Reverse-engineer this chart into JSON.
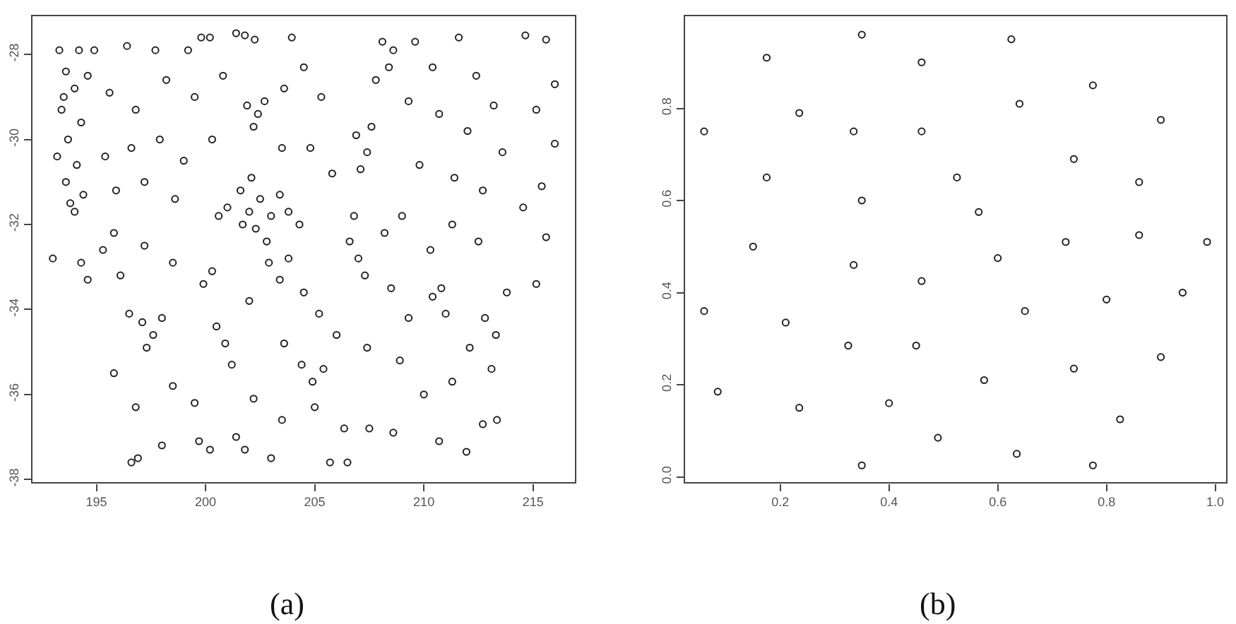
{
  "chart_data": [
    {
      "type": "scatter",
      "marker": "circle",
      "color": "#222222",
      "xlim": [
        192.07,
        216.92
      ],
      "ylim": [
        -38.07,
        -27.1
      ],
      "xticks": [
        195,
        200,
        205,
        210,
        215
      ],
      "yticks": [
        -28,
        -30,
        -32,
        -34,
        -36,
        -38
      ],
      "annotations": [
        "(a)"
      ],
      "x": [
        193.3,
        194.2,
        193.6,
        194.0,
        193.4,
        194.3,
        193.7,
        193.2,
        194.1,
        193.6,
        194.4,
        194.0,
        193.5,
        194.6,
        193.8,
        194.9,
        196.4,
        197.7,
        199.2,
        195.6,
        196.8,
        198.2,
        199.5,
        195.4,
        196.6,
        197.9,
        199.0,
        195.9,
        197.2,
        198.6,
        200.3,
        200.8,
        199.8,
        200.2,
        201.4,
        201.8,
        202.25,
        203.95,
        201.9,
        202.4,
        202.2,
        202.7,
        201.0,
        201.6,
        202.0,
        202.5,
        203.0,
        202.3,
        201.7,
        203.4,
        203.8,
        202.8,
        202.1,
        200.6,
        204.3,
        204.5,
        205.3,
        203.6,
        204.8,
        205.8,
        203.5,
        206.9,
        207.4,
        207.1,
        207.6,
        208.1,
        208.6,
        208.4,
        207.8,
        209.6,
        210.4,
        211.6,
        212.4,
        209.3,
        210.7,
        212.0,
        213.2,
        209.8,
        211.4,
        212.7,
        213.6,
        214.65,
        215.6,
        216.0,
        215.15,
        216.0,
        215.4,
        214.55,
        215.6,
        215.15,
        213.8,
        193.0,
        194.3,
        195.3,
        194.6,
        195.8,
        196.1,
        197.2,
        198.5,
        199.9,
        200.3,
        196.5,
        197.1,
        197.6,
        197.3,
        198.0,
        200.5,
        200.9,
        201.2,
        202.9,
        203.4,
        203.8,
        204.5,
        205.2,
        202.0,
        206.6,
        207.0,
        207.3,
        206.8,
        208.2,
        209.0,
        208.5,
        210.3,
        211.3,
        212.5,
        210.4,
        211.0,
        210.8,
        209.3,
        212.8,
        213.3,
        212.1,
        204.4,
        204.9,
        205.4,
        203.6,
        206.0,
        207.4,
        198.5,
        196.8,
        199.5,
        202.2,
        203.5,
        196.6,
        196.9,
        199.7,
        200.2,
        201.4,
        201.8,
        203.0,
        205.7,
        206.5,
        207.5,
        208.6,
        206.35,
        205.0,
        210.0,
        210.7,
        211.95,
        212.7,
        213.35,
        211.3,
        213.1,
        195.8,
        198.0,
        208.9
      ],
      "values": [
        -27.9,
        -27.9,
        -28.4,
        -28.8,
        -29.3,
        -29.6,
        -30.0,
        -30.4,
        -30.6,
        -31.0,
        -31.3,
        -31.7,
        -29.0,
        -28.5,
        -31.5,
        -27.9,
        -27.8,
        -27.9,
        -27.9,
        -28.9,
        -29.3,
        -28.6,
        -29.0,
        -30.4,
        -30.2,
        -30.0,
        -30.5,
        -31.2,
        -31.0,
        -31.4,
        -30.0,
        -28.5,
        -27.6,
        -27.6,
        -27.5,
        -27.55,
        -27.65,
        -27.6,
        -29.2,
        -29.4,
        -29.7,
        -29.1,
        -31.6,
        -31.2,
        -31.7,
        -31.4,
        -31.8,
        -32.1,
        -32.0,
        -31.3,
        -31.7,
        -32.4,
        -30.9,
        -31.8,
        -32.0,
        -28.3,
        -29.0,
        -28.8,
        -30.2,
        -30.8,
        -30.2,
        -29.9,
        -30.3,
        -30.7,
        -29.7,
        -27.7,
        -27.9,
        -28.3,
        -28.6,
        -27.7,
        -28.3,
        -27.6,
        -28.5,
        -29.1,
        -29.4,
        -29.8,
        -29.2,
        -30.6,
        -30.9,
        -31.2,
        -30.3,
        -27.55,
        -27.65,
        -28.7,
        -29.3,
        -30.1,
        -31.1,
        -31.6,
        -32.3,
        -33.4,
        -33.6,
        -32.8,
        -32.9,
        -32.6,
        -33.3,
        -32.2,
        -33.2,
        -32.5,
        -32.9,
        -33.4,
        -33.1,
        -34.1,
        -34.3,
        -34.6,
        -34.9,
        -34.2,
        -34.4,
        -34.8,
        -35.3,
        -32.9,
        -33.3,
        -32.8,
        -33.6,
        -34.1,
        -33.8,
        -32.4,
        -32.8,
        -33.2,
        -31.8,
        -32.2,
        -31.8,
        -33.5,
        -32.6,
        -32.0,
        -32.4,
        -33.7,
        -34.1,
        -33.5,
        -34.2,
        -34.2,
        -34.6,
        -34.9,
        -35.3,
        -35.7,
        -35.4,
        -34.8,
        -34.6,
        -34.9,
        -35.8,
        -36.3,
        -36.2,
        -36.1,
        -36.6,
        -37.6,
        -37.5,
        -37.1,
        -37.3,
        -37.0,
        -37.3,
        -37.5,
        -37.6,
        -37.6,
        -36.8,
        -36.9,
        -36.8,
        -36.3,
        -36.0,
        -37.1,
        -37.35,
        -36.7,
        -36.6,
        -35.7,
        -35.4,
        -35.5,
        -37.2,
        -35.2
      ]
    },
    {
      "type": "scatter",
      "marker": "circle",
      "color": "#222222",
      "xlim": [
        0.025,
        1.02
      ],
      "ylim": [
        -0.012,
        1.0
      ],
      "xticks": [
        0.2,
        0.4,
        0.6,
        0.8,
        {
          "value": 1,
          "label": "1.0"
        }
      ],
      "yticks": [
        {
          "value": 0,
          "label": "0.0"
        },
        0.2,
        0.4,
        0.6,
        0.8
      ],
      "annotations": [
        "(b)"
      ],
      "x": [
        0.35,
        0.625,
        0.175,
        0.46,
        0.775,
        0.64,
        0.235,
        0.9,
        0.06,
        0.335,
        0.46,
        0.74,
        0.175,
        0.525,
        0.86,
        0.35,
        0.565,
        0.15,
        0.725,
        0.86,
        0.985,
        0.6,
        0.335,
        0.46,
        0.94,
        0.8,
        0.06,
        0.65,
        0.21,
        0.325,
        0.45,
        0.9,
        0.74,
        0.575,
        0.085,
        0.4,
        0.235,
        0.825,
        0.49,
        0.635,
        0.35,
        0.775
      ],
      "values": [
        0.96,
        0.95,
        0.91,
        0.9,
        0.85,
        0.81,
        0.79,
        0.775,
        0.75,
        0.75,
        0.75,
        0.69,
        0.65,
        0.65,
        0.64,
        0.6,
        0.575,
        0.5,
        0.51,
        0.525,
        0.51,
        0.475,
        0.46,
        0.425,
        0.4,
        0.385,
        0.36,
        0.36,
        0.335,
        0.285,
        0.285,
        0.26,
        0.235,
        0.21,
        0.185,
        0.16,
        0.15,
        0.125,
        0.085,
        0.05,
        0.025,
        0.025
      ]
    }
  ]
}
